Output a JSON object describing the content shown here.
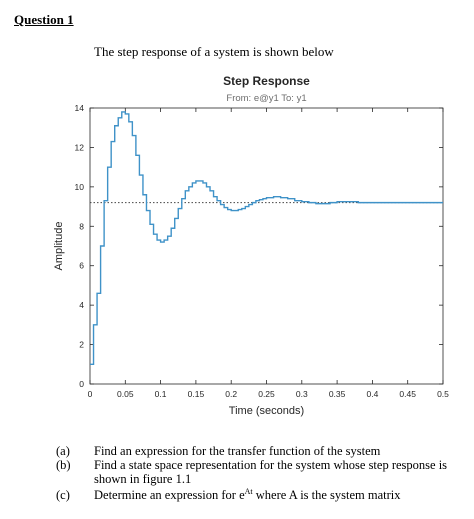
{
  "heading": "Question 1",
  "intro": "The step response of a system is shown below",
  "chart_data": {
    "type": "line",
    "title": "Step Response",
    "subtitle": "From: e@y1  To: y1",
    "xlabel": "Time (seconds)",
    "ylabel": "Amplitude",
    "xlim": [
      0,
      0.5
    ],
    "ylim": [
      0,
      14
    ],
    "xticks": [
      "0",
      "0.05",
      "0.1",
      "0.15",
      "0.2",
      "0.25",
      "0.3",
      "0.35",
      "0.4",
      "0.45",
      "0.5"
    ],
    "yticks": [
      "0",
      "2",
      "4",
      "6",
      "8",
      "10",
      "12",
      "14"
    ],
    "steady_state": 9.2,
    "series": [
      {
        "style": "stairs",
        "color": "#3f92c8",
        "x": [
          0,
          0.005,
          0.01,
          0.015,
          0.02,
          0.025,
          0.03,
          0.035,
          0.04,
          0.045,
          0.05,
          0.055,
          0.06,
          0.065,
          0.07,
          0.075,
          0.08,
          0.085,
          0.09,
          0.095,
          0.1,
          0.105,
          0.11,
          0.115,
          0.12,
          0.125,
          0.13,
          0.135,
          0.14,
          0.145,
          0.15,
          0.155,
          0.16,
          0.165,
          0.17,
          0.175,
          0.18,
          0.185,
          0.19,
          0.195,
          0.2,
          0.205,
          0.21,
          0.215,
          0.22,
          0.225,
          0.23,
          0.235,
          0.24,
          0.245,
          0.25,
          0.26,
          0.27,
          0.28,
          0.29,
          0.3,
          0.31,
          0.32,
          0.33,
          0.34,
          0.35,
          0.36,
          0.37,
          0.38,
          0.39,
          0.4,
          0.41,
          0.42,
          0.43,
          0.44,
          0.45,
          0.46,
          0.47,
          0.48,
          0.49,
          0.5
        ],
        "y": [
          1.0,
          3.0,
          4.6,
          7.0,
          9.3,
          11.0,
          12.3,
          13.1,
          13.5,
          13.8,
          13.7,
          13.3,
          12.6,
          11.6,
          10.6,
          9.6,
          8.8,
          8.1,
          7.6,
          7.3,
          7.2,
          7.3,
          7.5,
          7.9,
          8.4,
          8.9,
          9.4,
          9.8,
          10.0,
          10.2,
          10.3,
          10.3,
          10.2,
          10.0,
          9.8,
          9.5,
          9.3,
          9.1,
          8.95,
          8.85,
          8.8,
          8.8,
          8.85,
          8.9,
          9.0,
          9.1,
          9.2,
          9.3,
          9.35,
          9.4,
          9.45,
          9.5,
          9.45,
          9.4,
          9.3,
          9.25,
          9.2,
          9.15,
          9.15,
          9.2,
          9.25,
          9.25,
          9.25,
          9.2,
          9.2,
          9.2,
          9.2,
          9.2,
          9.2,
          9.2,
          9.2,
          9.2,
          9.2,
          9.2,
          9.2,
          9.2
        ]
      }
    ]
  },
  "questions": [
    {
      "label": "(a)",
      "text": "Find an expression for the transfer function of the system"
    },
    {
      "label": "(b)",
      "text": "Find a state space representation for the system whose step response is shown in figure 1.1"
    },
    {
      "label": "(c)",
      "text_before": "Determine an expression for e",
      "sup": "At",
      "text_after": " where A is the system matrix"
    }
  ]
}
